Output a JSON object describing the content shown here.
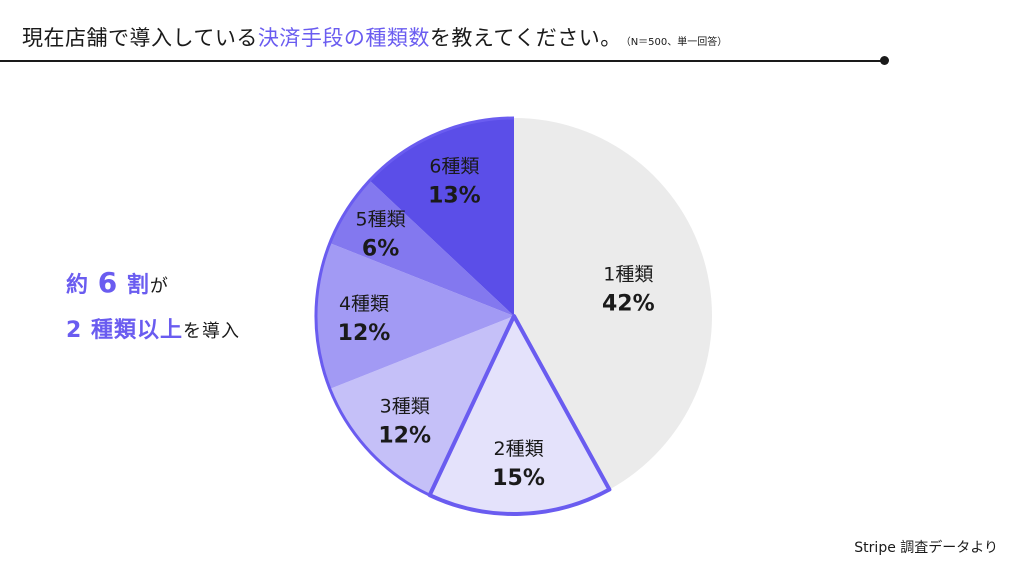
{
  "title": {
    "before": "現在店舗で導入している",
    "highlight": "決済手段の種類数",
    "after": "を教えてください。",
    "note": "（N＝500、単一回答）"
  },
  "callout": {
    "line1_a": "約",
    "line1_num": "6",
    "line1_b": "割",
    "line1_c": "が",
    "line2_main": "2 種類以上",
    "line2_rest": "を導入"
  },
  "source": "Stripe 調査データより",
  "colors": {
    "accent": "#6a5cf0",
    "slice_1": "#ebebeb",
    "slice_2": "#e4e2fb",
    "slice_3": "#c5c0f8",
    "slice_4": "#a29af4",
    "slice_5": "#8378ef",
    "slice_6": "#5b4ee8"
  },
  "chart_data": {
    "type": "pie",
    "categories": [
      "1種類",
      "2種類",
      "3種類",
      "4種類",
      "5種類",
      "6種類"
    ],
    "values": [
      42,
      15,
      12,
      12,
      6,
      13
    ],
    "value_labels": [
      "42%",
      "15%",
      "12%",
      "12%",
      "6%",
      "13%"
    ],
    "unit": "%",
    "start_angle": "12 o'clock",
    "direction": "clockwise",
    "highlighted_slice": "2種類"
  }
}
